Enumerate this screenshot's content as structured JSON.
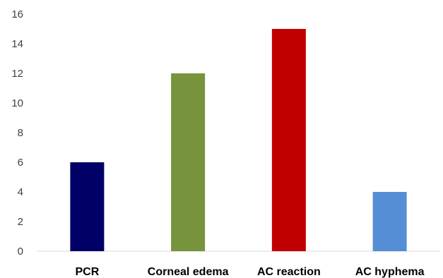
{
  "chart_data": {
    "type": "bar",
    "title": "",
    "xlabel": "",
    "ylabel": "",
    "categories": [
      "PCR",
      "Corneal edema",
      "AC reaction",
      "AC hyphema"
    ],
    "values": [
      6,
      12,
      15,
      4
    ],
    "colors": [
      "#000066",
      "#77933C",
      "#C00000",
      "#558ED5"
    ],
    "ylim": [
      0,
      16
    ],
    "yticks": [
      "0",
      "2",
      "4",
      "6",
      "8",
      "10",
      "12",
      "14",
      "16"
    ],
    "grid": false,
    "legend": "none"
  }
}
